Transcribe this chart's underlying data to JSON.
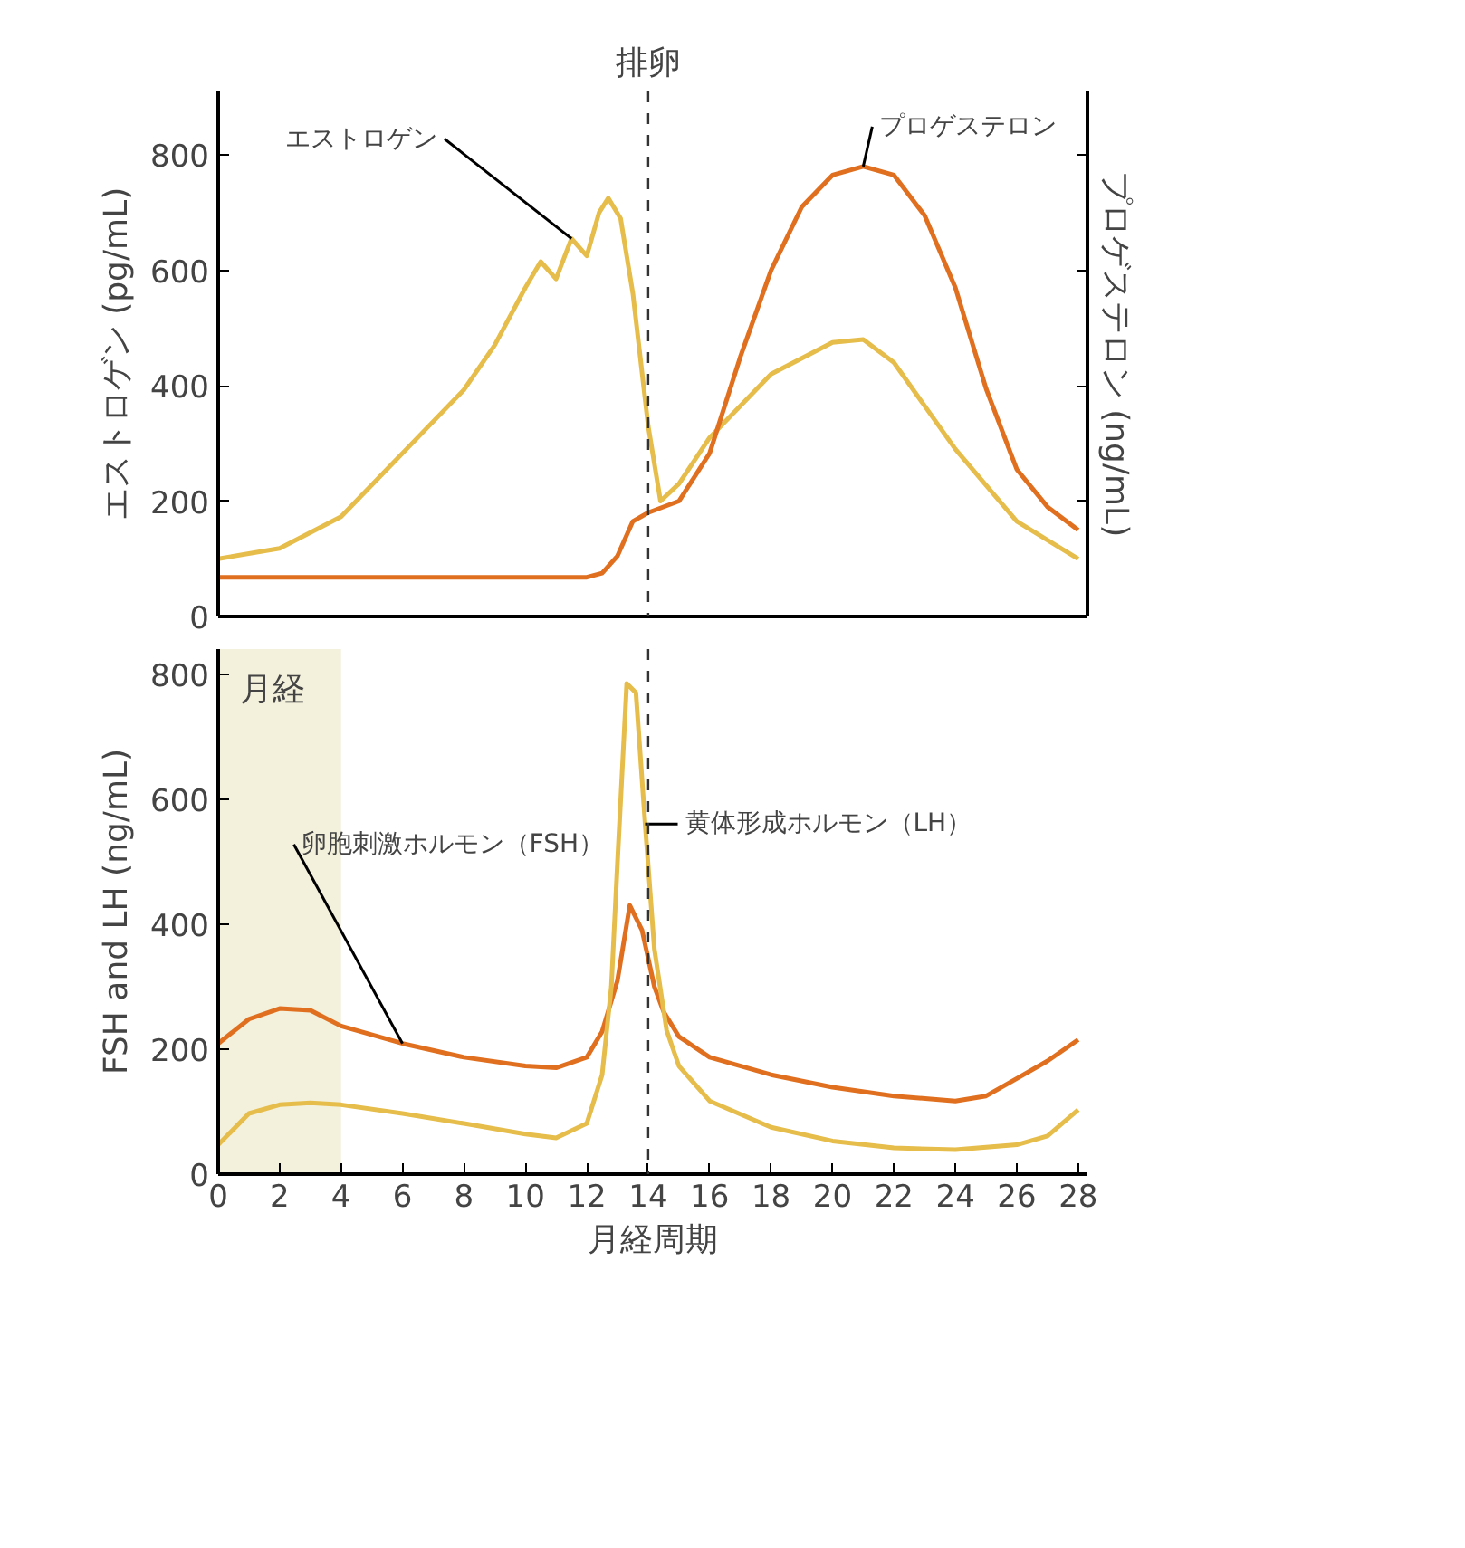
{
  "chart_data": [
    {
      "type": "line",
      "ylabel": "エストロゲン (pg/mL)",
      "y2label": "プロゲステロン (ng/mL)",
      "xlim": [
        0,
        28.3
      ],
      "ylim": [
        0,
        910
      ],
      "yticks": [
        0,
        200,
        400,
        600,
        800
      ],
      "tick_labels": "y",
      "ref_lines": [
        {
          "axis": "x",
          "value": 14,
          "label": "排卵",
          "line_style": "dashed",
          "color": "#333333"
        }
      ],
      "series": [
        {
          "name": "エストロゲン",
          "color": "#e6bd4a",
          "x": [
            0,
            2,
            4,
            6,
            8,
            9,
            10,
            10.5,
            11,
            11.5,
            12,
            12.4,
            12.7,
            13.1,
            13.5,
            14,
            14.4,
            15,
            16,
            18,
            20,
            21,
            22,
            24,
            26,
            28
          ],
          "values": [
            100,
            118,
            173,
            283,
            393,
            470,
            570,
            615,
            585,
            655,
            625,
            700,
            725,
            690,
            560,
            330,
            200,
            230,
            310,
            420,
            475,
            480,
            440,
            290,
            165,
            100
          ]
        },
        {
          "name": "プロゲステロン",
          "color": "#e07020",
          "x": [
            0,
            4,
            8,
            12,
            12.5,
            13,
            13.5,
            14,
            15,
            16,
            17,
            18,
            19,
            20,
            21,
            22,
            23,
            24,
            25,
            26,
            27,
            28
          ],
          "values": [
            68,
            68,
            68,
            68,
            75,
            105,
            165,
            180,
            200,
            283,
            450,
            600,
            710,
            765,
            780,
            765,
            695,
            570,
            395,
            255,
            190,
            150
          ]
        }
      ]
    },
    {
      "type": "line",
      "ylabel": "FSH and LH (ng/mL)",
      "xlabel": "月経周期",
      "xlim": [
        0,
        28.3
      ],
      "ylim": [
        0,
        840
      ],
      "xticks": [
        0,
        2,
        4,
        6,
        8,
        10,
        12,
        14,
        16,
        18,
        20,
        22,
        24,
        26,
        28
      ],
      "yticks": [
        0,
        200,
        400,
        600,
        800
      ],
      "ref_lines": [
        {
          "axis": "x",
          "value": 14,
          "line_style": "dashed",
          "color": "#333333"
        }
      ],
      "bands": [
        {
          "axis": "x",
          "from": 0,
          "to": 4,
          "label": "月経",
          "color": "#f3f0dc"
        }
      ],
      "series": [
        {
          "name": "卵胞刺激ホルモン（FSH）",
          "color": "#e07020",
          "x": [
            0,
            1,
            2,
            3,
            4,
            6,
            8,
            10,
            11,
            12,
            12.5,
            13,
            13.4,
            13.8,
            14.2,
            14.5,
            15,
            16,
            18,
            20,
            22,
            24,
            25,
            26,
            27,
            28
          ],
          "values": [
            209,
            248,
            265,
            262,
            237,
            209,
            187,
            173,
            170,
            187,
            228,
            310,
            430,
            390,
            300,
            260,
            220,
            187,
            159,
            139,
            125,
            117,
            125,
            153,
            181,
            215
          ]
        },
        {
          "name": "黄体形成ホルモン（LH）",
          "color": "#e6bd4a",
          "x": [
            0,
            1,
            2,
            3,
            4,
            6,
            8,
            10,
            11,
            12,
            12.5,
            12.8,
            13.0,
            13.3,
            13.6,
            13.9,
            14.2,
            14.6,
            15,
            16,
            18,
            20,
            22,
            24,
            26,
            27,
            28
          ],
          "values": [
            47,
            97,
            111,
            114,
            111,
            97,
            81,
            64,
            58,
            81,
            159,
            300,
            500,
            785,
            770,
            560,
            360,
            230,
            173,
            117,
            75,
            53,
            42,
            39,
            47,
            61,
            103
          ]
        }
      ]
    }
  ]
}
